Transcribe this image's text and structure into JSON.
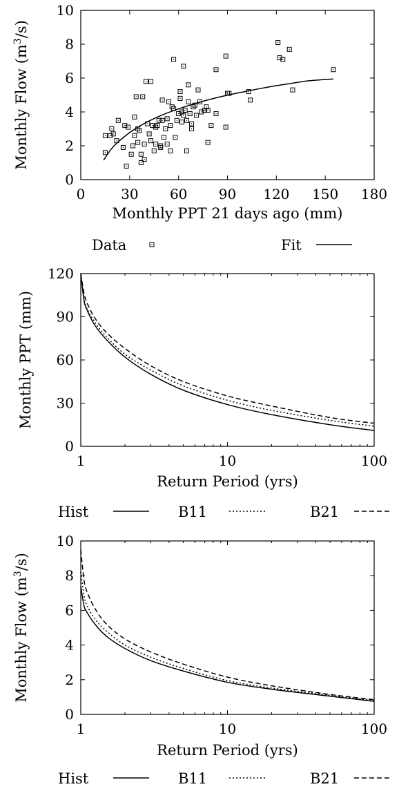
{
  "chart_data": [
    {
      "type": "scatter",
      "xlabel": "Monthly PPT 21 days ago (mm)",
      "ylabel": "Monthly Flow (m^3/s)",
      "xlim": [
        0,
        180
      ],
      "ylim": [
        0,
        10
      ],
      "x_ticks": [
        "0",
        "30",
        "60",
        "90",
        "120",
        "150",
        "180"
      ],
      "y_ticks": [
        "0",
        "2",
        "4",
        "6",
        "8",
        "10"
      ],
      "legend_position": "below",
      "series": [
        {
          "name": "Data",
          "kind": "scatter",
          "points": [
            [
              15,
              1.6
            ],
            [
              15,
              2.6
            ],
            [
              18,
              2.6
            ],
            [
              19,
              3.0
            ],
            [
              20,
              2.7
            ],
            [
              22,
              2.3
            ],
            [
              23,
              3.5
            ],
            [
              26,
              1.9
            ],
            [
              27,
              3.2
            ],
            [
              28,
              0.8
            ],
            [
              29,
              3.1
            ],
            [
              31,
              1.5
            ],
            [
              32,
              2.0
            ],
            [
              33,
              3.7
            ],
            [
              33,
              2.6
            ],
            [
              34,
              4.9
            ],
            [
              35,
              2.2
            ],
            [
              35,
              3.0
            ],
            [
              36,
              2.9
            ],
            [
              37,
              1.5
            ],
            [
              37,
              1.0
            ],
            [
              38,
              4.9
            ],
            [
              39,
              1.2
            ],
            [
              39,
              2.1
            ],
            [
              40,
              5.8
            ],
            [
              41,
              3.3
            ],
            [
              42,
              2.7
            ],
            [
              43,
              5.8
            ],
            [
              43,
              2.3
            ],
            [
              44,
              3.2
            ],
            [
              45,
              1.7
            ],
            [
              46,
              2.1
            ],
            [
              46,
              3.1
            ],
            [
              47,
              3.2
            ],
            [
              48,
              3.5
            ],
            [
              49,
              2.0
            ],
            [
              49,
              1.9
            ],
            [
              50,
              4.7
            ],
            [
              50,
              3.5
            ],
            [
              51,
              2.5
            ],
            [
              52,
              3.0
            ],
            [
              53,
              2.1
            ],
            [
              53,
              3.6
            ],
            [
              54,
              4.6
            ],
            [
              55,
              1.7
            ],
            [
              55,
              3.2
            ],
            [
              56,
              4.3
            ],
            [
              57,
              7.1
            ],
            [
              57,
              4.2
            ],
            [
              58,
              2.5
            ],
            [
              59,
              3.5
            ],
            [
              60,
              3.9
            ],
            [
              61,
              4.8
            ],
            [
              61,
              5.2
            ],
            [
              62,
              3.4
            ],
            [
              62,
              4.0
            ],
            [
              63,
              6.7
            ],
            [
              63,
              3.8
            ],
            [
              64,
              4.1
            ],
            [
              65,
              3.5
            ],
            [
              65,
              1.7
            ],
            [
              66,
              5.6
            ],
            [
              66,
              4.6
            ],
            [
              67,
              3.9
            ],
            [
              68,
              3.3
            ],
            [
              68,
              3.0
            ],
            [
              69,
              4.3
            ],
            [
              70,
              4.4
            ],
            [
              71,
              3.8
            ],
            [
              72,
              5.3
            ],
            [
              73,
              4.6
            ],
            [
              74,
              4.0
            ],
            [
              76,
              4.1
            ],
            [
              77,
              4.3
            ],
            [
              78,
              2.2
            ],
            [
              78,
              4.1
            ],
            [
              80,
              3.2
            ],
            [
              83,
              6.5
            ],
            [
              83,
              3.9
            ],
            [
              89,
              7.3
            ],
            [
              89,
              3.1
            ],
            [
              90,
              5.1
            ],
            [
              91,
              5.1
            ],
            [
              103,
              5.2
            ],
            [
              104,
              4.7
            ],
            [
              121,
              8.1
            ],
            [
              122,
              7.2
            ],
            [
              124,
              7.1
            ],
            [
              128,
              7.7
            ],
            [
              130,
              5.3
            ],
            [
              155,
              6.5
            ]
          ]
        },
        {
          "name": "Fit",
          "kind": "line",
          "points": [
            [
              14,
              1.15
            ],
            [
              20,
              1.95
            ],
            [
              30,
              2.78
            ],
            [
              40,
              3.37
            ],
            [
              50,
              3.82
            ],
            [
              60,
              4.18
            ],
            [
              70,
              4.49
            ],
            [
              80,
              4.76
            ],
            [
              90,
              4.99
            ],
            [
              100,
              5.19
            ],
            [
              110,
              5.38
            ],
            [
              120,
              5.55
            ],
            [
              130,
              5.7
            ],
            [
              140,
              5.84
            ],
            [
              155,
              5.95
            ]
          ]
        }
      ]
    },
    {
      "type": "line",
      "xlabel": "Return Period (yrs)",
      "ylabel": "Monthly PPT (mm)",
      "xscale": "log",
      "xlim": [
        1,
        100
      ],
      "ylim": [
        0,
        120
      ],
      "x_ticks": [
        "1",
        "10",
        "100"
      ],
      "y_ticks": [
        "0",
        "30",
        "60",
        "90",
        "120"
      ],
      "legend_position": "below",
      "series": [
        {
          "name": "Hist",
          "style": "solid",
          "points": [
            [
              1,
              120
            ],
            [
              1.05,
              102
            ],
            [
              1.1,
              95
            ],
            [
              1.25,
              84
            ],
            [
              1.5,
              74
            ],
            [
              2,
              62
            ],
            [
              3,
              50
            ],
            [
              5,
              39
            ],
            [
              10,
              29
            ],
            [
              20,
              22
            ],
            [
              50,
              15
            ],
            [
              100,
              11
            ]
          ]
        },
        {
          "name": "B11",
          "style": "dotted",
          "points": [
            [
              1,
              120
            ],
            [
              1.05,
              103
            ],
            [
              1.1,
              96
            ],
            [
              1.25,
              86
            ],
            [
              1.5,
              76
            ],
            [
              2,
              64
            ],
            [
              3,
              53
            ],
            [
              5,
              42
            ],
            [
              10,
              32
            ],
            [
              20,
              25
            ],
            [
              50,
              18
            ],
            [
              100,
              14
            ]
          ]
        },
        {
          "name": "B21",
          "style": "dashed",
          "points": [
            [
              1,
              120
            ],
            [
              1.05,
              107
            ],
            [
              1.1,
              100
            ],
            [
              1.25,
              89
            ],
            [
              1.5,
              79
            ],
            [
              2,
              68
            ],
            [
              3,
              56
            ],
            [
              5,
              45
            ],
            [
              10,
              35
            ],
            [
              20,
              28
            ],
            [
              50,
              20
            ],
            [
              100,
              16
            ]
          ]
        }
      ]
    },
    {
      "type": "line",
      "xlabel": "Return Period (yrs)",
      "ylabel": "Monthly Flow (m^3/s)",
      "xscale": "log",
      "xlim": [
        1,
        100
      ],
      "ylim": [
        0,
        10
      ],
      "x_ticks": [
        "1",
        "10",
        "100"
      ],
      "y_ticks": [
        "0",
        "2",
        "4",
        "6",
        "8",
        "10"
      ],
      "legend_position": "below",
      "series": [
        {
          "name": "Hist",
          "style": "solid",
          "points": [
            [
              1,
              7.4
            ],
            [
              1.05,
              6.3
            ],
            [
              1.1,
              5.9
            ],
            [
              1.25,
              5.2
            ],
            [
              1.5,
              4.5
            ],
            [
              2,
              3.8
            ],
            [
              3,
              3.1
            ],
            [
              5,
              2.5
            ],
            [
              10,
              1.85
            ],
            [
              20,
              1.45
            ],
            [
              50,
              1.05
            ],
            [
              100,
              0.75
            ]
          ]
        },
        {
          "name": "B11",
          "style": "dotted",
          "points": [
            [
              1,
              8.2
            ],
            [
              1.05,
              6.9
            ],
            [
              1.1,
              6.3
            ],
            [
              1.25,
              5.5
            ],
            [
              1.5,
              4.8
            ],
            [
              2,
              4.0
            ],
            [
              3,
              3.3
            ],
            [
              5,
              2.65
            ],
            [
              10,
              1.95
            ],
            [
              20,
              1.52
            ],
            [
              50,
              1.1
            ],
            [
              100,
              0.8
            ]
          ]
        },
        {
          "name": "B21",
          "style": "dashed",
          "points": [
            [
              1,
              9.5
            ],
            [
              1.05,
              7.8
            ],
            [
              1.1,
              7.1
            ],
            [
              1.25,
              6.1
            ],
            [
              1.5,
              5.2
            ],
            [
              2,
              4.35
            ],
            [
              3,
              3.6
            ],
            [
              5,
              2.9
            ],
            [
              10,
              2.15
            ],
            [
              20,
              1.65
            ],
            [
              50,
              1.15
            ],
            [
              100,
              0.85
            ]
          ]
        }
      ]
    }
  ]
}
